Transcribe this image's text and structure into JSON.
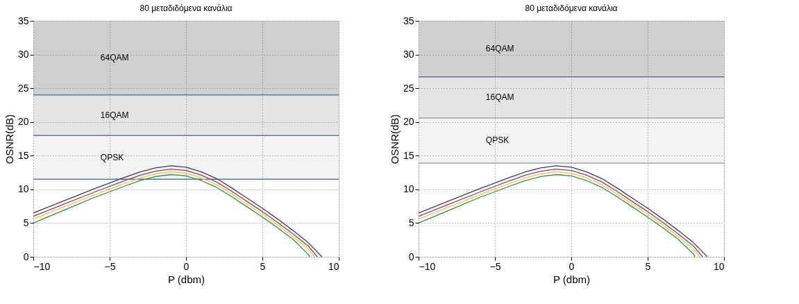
{
  "chart_data": [
    {
      "type": "line",
      "title": "80 μεταδιδόμενα κανάλια",
      "xlabel": "P (dbm)",
      "ylabel": "OSNR(dB)",
      "xlim": [
        -10,
        10
      ],
      "xticks": [
        -10,
        -5,
        0,
        5,
        10
      ],
      "ylim": [
        0,
        35
      ],
      "yticks": [
        0,
        5,
        10,
        15,
        20,
        25,
        30,
        35
      ],
      "grid": true,
      "line_style": "solid",
      "marker": "none",
      "bands": [
        {
          "axis": "y",
          "from": 11.5,
          "to": 18,
          "label": "QPSK",
          "color": "#f3f3f3"
        },
        {
          "axis": "y",
          "from": 18,
          "to": 24,
          "label": "16QAM",
          "color": "#e4e4e4"
        },
        {
          "axis": "y",
          "from": 24,
          "to": 35,
          "label": "64QAM",
          "color": "#d0d0d0"
        }
      ],
      "ref_lines": [
        {
          "axis": "y",
          "value": 11.5,
          "color": "#5a78a8"
        },
        {
          "axis": "y",
          "value": 18,
          "color": "#5a78a8"
        },
        {
          "axis": "y",
          "value": 24,
          "color": "#5a78a8"
        }
      ],
      "series": [
        {
          "color": "#3e3a6e",
          "x": [
            -10,
            -8,
            -6,
            -4,
            -3,
            -2,
            -1,
            0,
            1,
            2,
            3,
            4,
            5,
            6,
            7,
            8,
            8.9
          ],
          "values": [
            6.5,
            8.3,
            10.1,
            11.8,
            12.6,
            13.2,
            13.5,
            13.3,
            12.6,
            11.6,
            10.2,
            8.7,
            7.2,
            5.6,
            3.9,
            2.1,
            0
          ]
        },
        {
          "color": "#b03848",
          "x": [
            -10,
            -8,
            -6,
            -4,
            -3,
            -2,
            -1,
            0,
            1,
            2,
            3,
            4,
            5,
            6,
            7,
            8,
            8.6
          ],
          "values": [
            6.0,
            7.8,
            9.6,
            11.3,
            12.1,
            12.7,
            13.0,
            12.8,
            12.1,
            11.1,
            9.7,
            8.2,
            6.7,
            5.1,
            3.4,
            1.6,
            0
          ]
        },
        {
          "color": "#d8d060",
          "x": [
            -10,
            -8,
            -6,
            -4,
            -3,
            -2,
            -1,
            0,
            1,
            2,
            3,
            4,
            5,
            6,
            7,
            8,
            8.4
          ],
          "values": [
            5.6,
            7.4,
            9.2,
            10.9,
            11.7,
            12.3,
            12.6,
            12.4,
            11.7,
            10.7,
            9.3,
            7.8,
            6.3,
            4.7,
            3.0,
            1.1,
            0
          ]
        },
        {
          "color": "#3a8a3a",
          "x": [
            -10,
            -8,
            -6,
            -4,
            -3,
            -2,
            -1,
            0,
            1,
            2,
            3,
            4,
            5,
            6,
            7,
            8,
            8.1
          ],
          "values": [
            5.0,
            6.9,
            8.8,
            10.5,
            11.3,
            11.9,
            12.2,
            12.0,
            11.3,
            10.3,
            8.9,
            7.4,
            5.9,
            4.3,
            2.6,
            0.4,
            0
          ]
        }
      ]
    },
    {
      "type": "line",
      "title": "80 μεταδιδόμενα κανάλια",
      "xlabel": "P (dbm)",
      "ylabel": "OSNR(dB)",
      "xlim": [
        -10,
        10
      ],
      "xticks": [
        -10,
        -5,
        0,
        5,
        10
      ],
      "ylim": [
        0,
        35
      ],
      "yticks": [
        0,
        5,
        10,
        15,
        20,
        25,
        30,
        35
      ],
      "grid": true,
      "line_style": "solid",
      "marker": "none",
      "bands": [
        {
          "axis": "y",
          "from": 13.9,
          "to": 20.6,
          "label": "QPSK",
          "color": "#f3f3f3"
        },
        {
          "axis": "y",
          "from": 20.6,
          "to": 26.7,
          "label": "16QAM",
          "color": "#e4e4e4"
        },
        {
          "axis": "y",
          "from": 26.7,
          "to": 35,
          "label": "64QAM",
          "color": "#d0d0d0"
        }
      ],
      "ref_lines": [
        {
          "axis": "y",
          "value": 13.9,
          "color": "#a0a0b8"
        },
        {
          "axis": "y",
          "value": 20.6,
          "color": "#a0a0b8"
        },
        {
          "axis": "y",
          "value": 26.7,
          "color": "#6a6a8a"
        }
      ],
      "series": [
        {
          "color": "#3e3a6e",
          "x": [
            -10,
            -8,
            -6,
            -4,
            -3,
            -2,
            -1,
            0,
            1,
            2,
            3,
            4,
            5,
            6,
            7,
            8,
            8.9
          ],
          "values": [
            6.5,
            8.3,
            10.1,
            11.8,
            12.6,
            13.2,
            13.5,
            13.3,
            12.6,
            11.6,
            10.2,
            8.7,
            7.2,
            5.6,
            3.9,
            2.1,
            0
          ]
        },
        {
          "color": "#b03848",
          "x": [
            -10,
            -8,
            -6,
            -4,
            -3,
            -2,
            -1,
            0,
            1,
            2,
            3,
            4,
            5,
            6,
            7,
            8,
            8.6
          ],
          "values": [
            6.0,
            7.8,
            9.6,
            11.3,
            12.1,
            12.7,
            13.0,
            12.8,
            12.1,
            11.1,
            9.7,
            8.2,
            6.7,
            5.1,
            3.4,
            1.6,
            0
          ]
        },
        {
          "color": "#d8d060",
          "x": [
            -10,
            -8,
            -6,
            -4,
            -3,
            -2,
            -1,
            0,
            1,
            2,
            3,
            4,
            5,
            6,
            7,
            8,
            8.4
          ],
          "values": [
            5.6,
            7.4,
            9.2,
            10.9,
            11.7,
            12.3,
            12.6,
            12.4,
            11.7,
            10.7,
            9.3,
            7.8,
            6.3,
            4.7,
            3.0,
            1.1,
            0
          ]
        },
        {
          "color": "#3a8a3a",
          "x": [
            -10,
            -8,
            -6,
            -4,
            -3,
            -2,
            -1,
            0,
            1,
            2,
            3,
            4,
            5,
            6,
            7,
            8,
            8.1
          ],
          "values": [
            5.0,
            6.9,
            8.8,
            10.5,
            11.3,
            11.9,
            12.2,
            12.0,
            11.3,
            10.3,
            8.9,
            7.4,
            5.9,
            4.3,
            2.6,
            0.4,
            0
          ]
        }
      ]
    }
  ]
}
